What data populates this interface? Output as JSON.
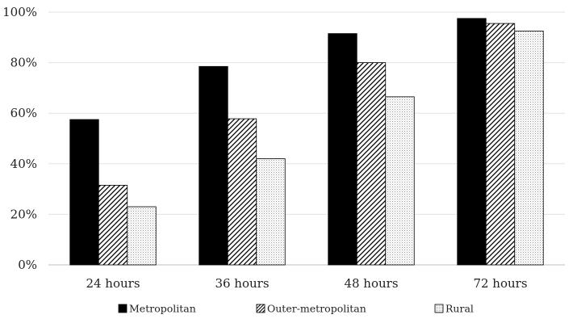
{
  "chart_data": {
    "type": "bar",
    "categories": [
      "24 hours",
      "36 hours",
      "48 hours",
      "72 hours"
    ],
    "series": [
      {
        "name": "Metropolitan",
        "values": [
          57.5,
          78.5,
          91.5,
          97.5
        ],
        "pattern": "solid",
        "color": "#000000"
      },
      {
        "name": "Outer-metropolitan",
        "values": [
          31.5,
          57.8,
          80.0,
          95.5
        ],
        "pattern": "diagonal-hatch",
        "color": "#000000"
      },
      {
        "name": "Rural",
        "values": [
          23.0,
          42.0,
          66.5,
          92.5
        ],
        "pattern": "dots",
        "color": "#000000"
      }
    ],
    "title": "",
    "xlabel": "",
    "ylabel": "",
    "ylim": [
      0,
      100
    ],
    "yticks": [
      "0%",
      "20%",
      "40%",
      "60%",
      "80%",
      "100%"
    ],
    "y_tick_values": [
      0,
      20,
      40,
      60,
      80,
      100
    ],
    "grid": true,
    "legend_position": "bottom"
  }
}
